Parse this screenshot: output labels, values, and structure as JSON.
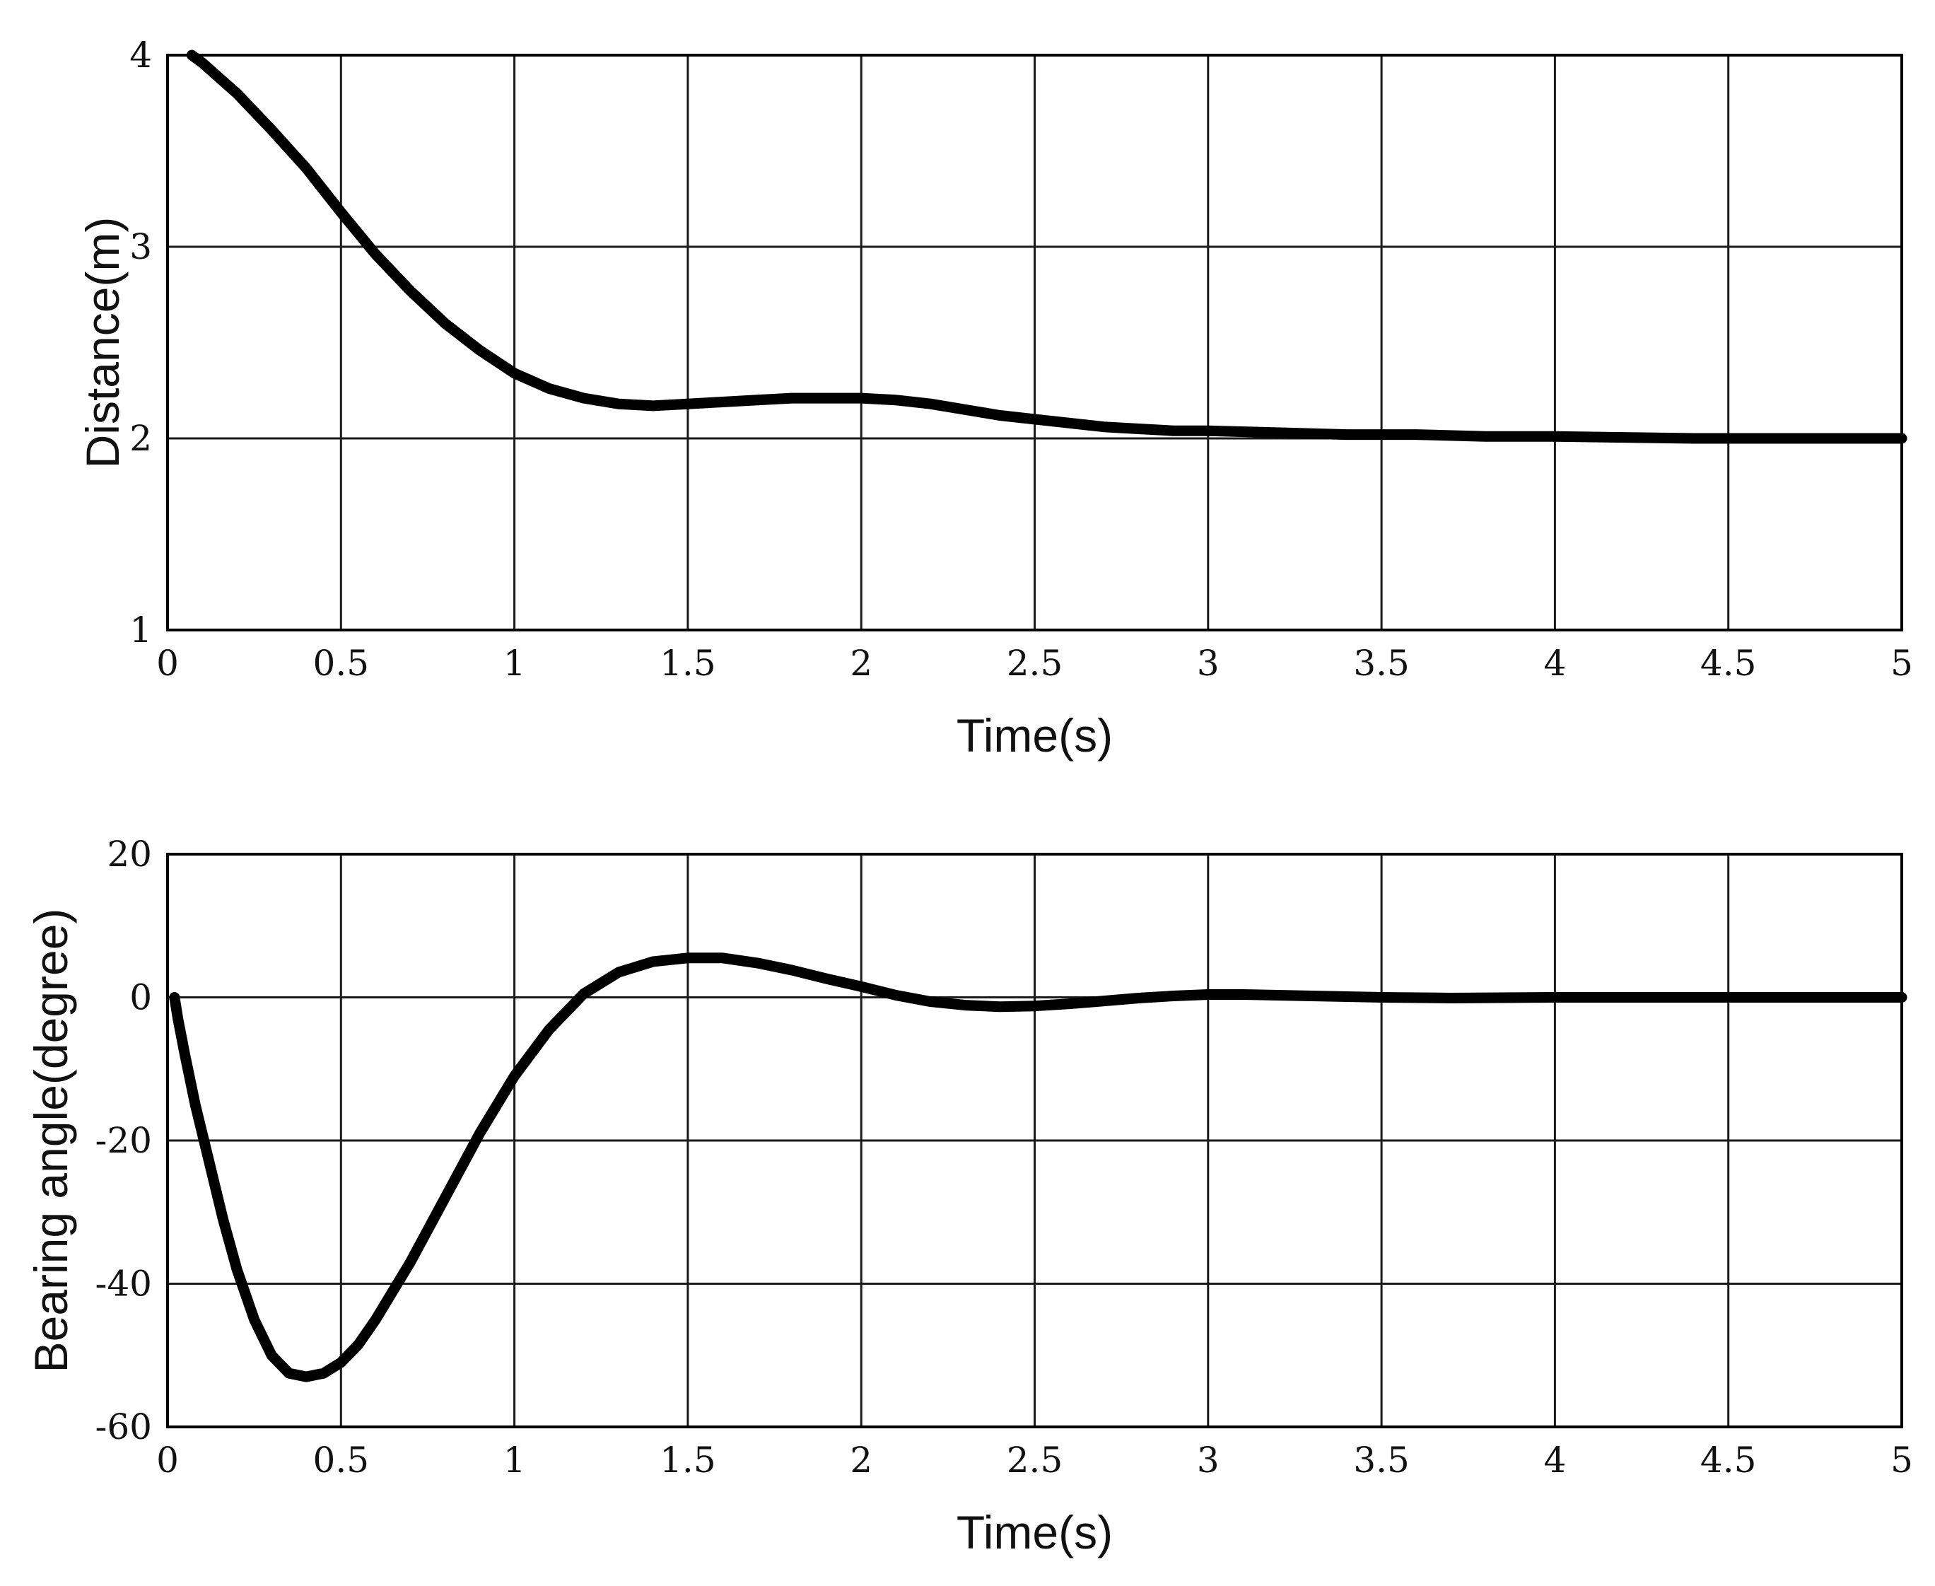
{
  "chart_data": [
    {
      "type": "line",
      "title": "",
      "xlabel": "Time(s)",
      "ylabel": "Distance(m)",
      "xlim": [
        0,
        5
      ],
      "ylim": [
        1,
        4
      ],
      "xticks": [
        0,
        0.5,
        1,
        1.5,
        2,
        2.5,
        3,
        3.5,
        4,
        4.5,
        5
      ],
      "xtick_labels": [
        "0",
        "0.5",
        "1",
        "1.5",
        "2",
        "2.5",
        "3",
        "3.5",
        "4",
        "4.5",
        "5"
      ],
      "yticks": [
        1,
        2,
        3,
        4
      ],
      "ytick_labels": [
        "1",
        "2",
        "3",
        "4"
      ],
      "grid": true,
      "line_color": "#000000",
      "series": [
        {
          "name": "distance",
          "x": [
            0.07,
            0.1,
            0.2,
            0.3,
            0.4,
            0.5,
            0.6,
            0.7,
            0.8,
            0.9,
            1.0,
            1.1,
            1.2,
            1.3,
            1.4,
            1.5,
            1.6,
            1.7,
            1.8,
            1.9,
            2.0,
            2.1,
            2.2,
            2.3,
            2.4,
            2.5,
            2.6,
            2.7,
            2.8,
            2.9,
            3.0,
            3.2,
            3.4,
            3.6,
            3.8,
            4.0,
            4.2,
            4.4,
            4.6,
            4.8,
            5.0
          ],
          "values": [
            4.0,
            3.96,
            3.8,
            3.61,
            3.41,
            3.18,
            2.96,
            2.77,
            2.6,
            2.46,
            2.34,
            2.26,
            2.21,
            2.18,
            2.17,
            2.18,
            2.19,
            2.2,
            2.21,
            2.21,
            2.21,
            2.2,
            2.18,
            2.15,
            2.12,
            2.1,
            2.08,
            2.06,
            2.05,
            2.04,
            2.04,
            2.03,
            2.02,
            2.02,
            2.01,
            2.01,
            2.005,
            2.0,
            2.0,
            2.0,
            2.0
          ]
        }
      ]
    },
    {
      "type": "line",
      "title": "",
      "xlabel": "Time(s)",
      "ylabel": "Bearing angle(degree)",
      "xlim": [
        0,
        5
      ],
      "ylim": [
        -60,
        20
      ],
      "xticks": [
        0,
        0.5,
        1,
        1.5,
        2,
        2.5,
        3,
        3.5,
        4,
        4.5,
        5
      ],
      "xtick_labels": [
        "0",
        "0.5",
        "1",
        "1.5",
        "2",
        "2.5",
        "3",
        "3.5",
        "4",
        "4.5",
        "5"
      ],
      "yticks": [
        -60,
        -40,
        -20,
        0,
        20
      ],
      "ytick_labels": [
        "-60",
        "-40",
        "-20",
        "0",
        "20"
      ],
      "grid": true,
      "line_color": "#000000",
      "series": [
        {
          "name": "bearing angle",
          "x": [
            0.02,
            0.03,
            0.05,
            0.08,
            0.12,
            0.16,
            0.2,
            0.25,
            0.3,
            0.35,
            0.4,
            0.45,
            0.5,
            0.55,
            0.6,
            0.7,
            0.8,
            0.9,
            1.0,
            1.1,
            1.2,
            1.3,
            1.4,
            1.5,
            1.6,
            1.7,
            1.8,
            1.9,
            2.0,
            2.1,
            2.2,
            2.3,
            2.4,
            2.5,
            2.6,
            2.7,
            2.8,
            2.9,
            3.0,
            3.1,
            3.2,
            3.3,
            3.5,
            3.7,
            4.0,
            4.5,
            5.0
          ],
          "values": [
            0.0,
            -3.0,
            -8.0,
            -15.0,
            -23.0,
            -31.0,
            -38.0,
            -45.0,
            -50.0,
            -52.5,
            -53.0,
            -52.5,
            -51.0,
            -48.5,
            -45.0,
            -37.0,
            -28.0,
            -19.0,
            -11.0,
            -4.5,
            0.5,
            3.5,
            5.0,
            5.5,
            5.5,
            4.8,
            3.8,
            2.6,
            1.5,
            0.3,
            -0.6,
            -1.1,
            -1.3,
            -1.2,
            -0.9,
            -0.5,
            -0.1,
            0.2,
            0.4,
            0.4,
            0.3,
            0.2,
            0.0,
            -0.1,
            0.0,
            0.0,
            0.0
          ]
        }
      ]
    }
  ]
}
